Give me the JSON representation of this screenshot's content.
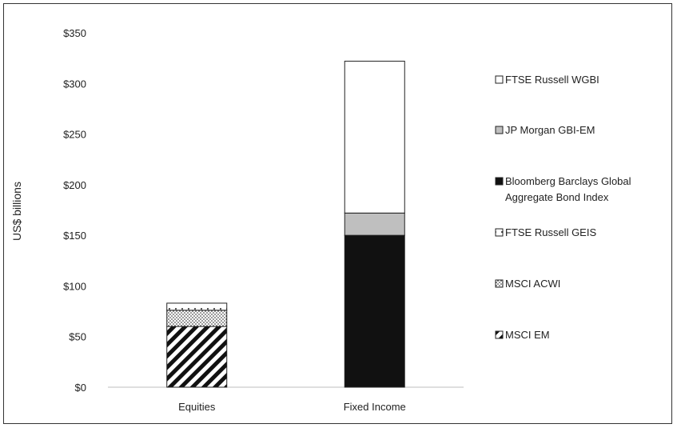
{
  "chart_data": {
    "type": "bar",
    "stacked": true,
    "categories": [
      "Equities",
      "Fixed Income"
    ],
    "ylabel": "US$ billions",
    "xlabel": "",
    "ylim": [
      0,
      350
    ],
    "yticks": [
      0,
      50,
      100,
      150,
      200,
      250,
      300,
      350
    ],
    "ytick_labels": [
      "$0",
      "$50",
      "$100",
      "$150",
      "$200",
      "$250",
      "$300",
      "$350"
    ],
    "grid": false,
    "legend_position": "right",
    "series": [
      {
        "name": "MSCI EM",
        "values": [
          60,
          0
        ],
        "pattern": "diagonal-hatch"
      },
      {
        "name": "MSCI ACWI",
        "values": [
          16,
          0
        ],
        "pattern": "dots"
      },
      {
        "name": "FTSE Russell GEIS",
        "values": [
          7,
          0
        ],
        "pattern": "dots-sparse"
      },
      {
        "name": "Bloomberg Barclays Global Aggregate Bond Index",
        "values": [
          0,
          150
        ],
        "pattern": "solid-black"
      },
      {
        "name": "JP Morgan GBI-EM",
        "values": [
          0,
          22
        ],
        "pattern": "solid-gray"
      },
      {
        "name": "FTSE Russell WGBI",
        "values": [
          0,
          150
        ],
        "pattern": "white"
      }
    ],
    "legend_order": [
      {
        "label": "FTSE Russell WGBI",
        "pattern": "white"
      },
      {
        "label": "JP Morgan GBI-EM",
        "pattern": "solid-gray"
      },
      {
        "label": "Bloomberg Barclays Global",
        "label2": "Aggregate Bond Index",
        "pattern": "solid-black"
      },
      {
        "label": "FTSE Russell GEIS",
        "pattern": "dots-sparse"
      },
      {
        "label": "MSCI ACWI",
        "pattern": "dots"
      },
      {
        "label": "MSCI EM",
        "pattern": "diagonal-hatch"
      }
    ]
  }
}
